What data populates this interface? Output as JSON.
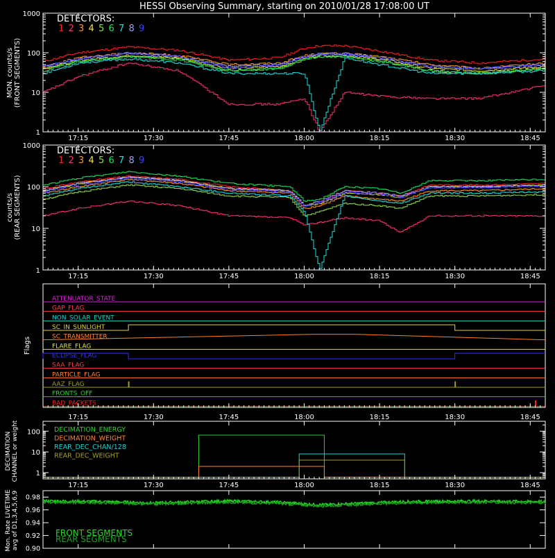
{
  "title": "HESSI Observing Summary, starting on 2010/01/28 17:08:00 UT",
  "colors": {
    "background": "#000000",
    "axis": "#ffffff",
    "detectors": [
      "#ff2020",
      "#ff3070",
      "#ff9820",
      "#f0e040",
      "#90e040",
      "#20e060",
      "#20e0e0",
      "#a0a0ff",
      "#4040ff"
    ]
  },
  "time_axis": {
    "ticks": [
      "17:15",
      "17:30",
      "17:45",
      "18:00",
      "18:15",
      "18:30",
      "18:45"
    ],
    "start": "17:08",
    "end": "18:48"
  },
  "panels": {
    "front": {
      "ylabel_1": "MON. counts/s",
      "ylabel_2": "(FRONT SEGMENTS)",
      "legend_title": "DETECTORS:",
      "y_ticks": [
        "1",
        "10",
        "100",
        "1000"
      ]
    },
    "rear": {
      "ylabel_1": "counts/s",
      "ylabel_2": "(REAR SEGMENTS)",
      "legend_title": "DETECTORS:",
      "y_ticks": [
        "1",
        "10",
        "100",
        "1000"
      ]
    },
    "flags": {
      "ylabel": "Flags",
      "items": [
        {
          "label": "ATTENUATOR_STATE",
          "color": "#e020e0"
        },
        {
          "label": "GAP_FLAG",
          "color": "#ff4040"
        },
        {
          "label": "NON_SOLAR_EVENT",
          "color": "#20d0d0"
        },
        {
          "label": "SC_IN_SUNLIGHT",
          "color": "#e0d040"
        },
        {
          "label": "SC_TRANSMITTER",
          "color": "#ff8030"
        },
        {
          "label": "FLARE_FLAG",
          "color": "#e0e040"
        },
        {
          "label": "ECLIPSE_FLAG",
          "color": "#3030ff"
        },
        {
          "label": "SAA_FLAG",
          "color": "#ff4040"
        },
        {
          "label": "PARTICLE_FLAG",
          "color": "#ff8030"
        },
        {
          "label": "AAZ_FLAG",
          "color": "#a0a020"
        },
        {
          "label": "FRONTS_OFF",
          "color": "#30d030"
        },
        {
          "label": "BAD_PACKETS",
          "color": "#ff2020"
        }
      ]
    },
    "decimation": {
      "ylabel_1": "DECIMATION",
      "ylabel_2": "CHANNEL or weight",
      "y_ticks": [
        "1",
        "10",
        "100"
      ],
      "legend": [
        {
          "label": "DECIMATION_ENERGY",
          "color": "#30d030"
        },
        {
          "label": "DECIMATION_WEIGHT",
          "color": "#ff8030"
        },
        {
          "label": "REAR_DEC_CHAN/128",
          "color": "#20d0d0"
        },
        {
          "label": "REAR_DEC_WEIGHT",
          "color": "#a0a020"
        }
      ]
    },
    "livetime": {
      "ylabel_1": "Mon. Rate LIVETIME",
      "ylabel_2": "avg of D1,3,4,5,6,9",
      "y_ticks": [
        "0.90",
        "0.92",
        "0.94",
        "0.96",
        "0.98"
      ],
      "legend": [
        {
          "label": "FRONT SEGMENTS",
          "color": "#20e020"
        },
        {
          "label": "REAR SEGMENTS",
          "color": "#20a020"
        }
      ]
    }
  },
  "chart_data": [
    {
      "type": "line",
      "title": "HESSI Observing Summary, starting on 2010/01/28 17:08:00 UT",
      "ylabel": "MON. counts/s (FRONT SEGMENTS)",
      "y_scale": "log",
      "ylim": [
        1,
        1000
      ],
      "x_range": [
        "17:08",
        "18:48"
      ],
      "x": [
        "17:08",
        "17:15",
        "17:25",
        "17:35",
        "17:45",
        "17:55",
        "18:00",
        "18:03",
        "18:08",
        "18:15",
        "18:25",
        "18:35",
        "18:48"
      ],
      "series": [
        {
          "name": "1",
          "values": [
            60,
            100,
            140,
            115,
            65,
            75,
            130,
            150,
            150,
            110,
            65,
            55,
            70
          ]
        },
        {
          "name": "2",
          "values": [
            10,
            25,
            55,
            35,
            5,
            5,
            7,
            1,
            10,
            8,
            7,
            7,
            15
          ]
        },
        {
          "name": "3",
          "values": [
            45,
            75,
            100,
            85,
            50,
            55,
            85,
            95,
            95,
            80,
            50,
            40,
            55
          ]
        },
        {
          "name": "4",
          "values": [
            40,
            65,
            85,
            75,
            40,
            45,
            75,
            85,
            85,
            70,
            40,
            35,
            45
          ]
        },
        {
          "name": "5",
          "values": [
            40,
            60,
            80,
            70,
            35,
            40,
            70,
            85,
            85,
            65,
            35,
            30,
            40
          ]
        },
        {
          "name": "6",
          "values": [
            35,
            60,
            80,
            65,
            35,
            40,
            70,
            80,
            80,
            60,
            35,
            30,
            40
          ]
        },
        {
          "name": "7",
          "values": [
            30,
            55,
            70,
            55,
            30,
            30,
            30,
            1,
            75,
            50,
            30,
            30,
            35
          ]
        },
        {
          "name": "8",
          "values": [
            45,
            70,
            100,
            80,
            45,
            50,
            80,
            95,
            95,
            75,
            45,
            40,
            50
          ]
        },
        {
          "name": "9",
          "values": [
            45,
            70,
            95,
            80,
            40,
            50,
            80,
            90,
            90,
            75,
            45,
            40,
            50
          ]
        }
      ]
    },
    {
      "type": "line",
      "ylabel": "counts/s (REAR SEGMENTS)",
      "y_scale": "log",
      "ylim": [
        1,
        1000
      ],
      "x_range": [
        "17:08",
        "18:48"
      ],
      "x": [
        "17:08",
        "17:15",
        "17:25",
        "17:35",
        "17:45",
        "17:57",
        "18:00",
        "18:03",
        "18:08",
        "18:15",
        "18:19",
        "18:25",
        "18:35",
        "18:48"
      ],
      "series": [
        {
          "name": "1",
          "values": [
            90,
            130,
            180,
            150,
            100,
            80,
            35,
            40,
            80,
            70,
            60,
            110,
            110,
            120
          ]
        },
        {
          "name": "2",
          "values": [
            20,
            30,
            45,
            35,
            20,
            18,
            12,
            14,
            18,
            15,
            8,
            20,
            20,
            20
          ]
        },
        {
          "name": "3",
          "values": [
            70,
            100,
            150,
            120,
            80,
            70,
            30,
            35,
            60,
            50,
            45,
            80,
            80,
            90
          ]
        },
        {
          "name": "4",
          "values": [
            80,
            120,
            170,
            140,
            90,
            80,
            35,
            40,
            70,
            65,
            55,
            100,
            100,
            110
          ]
        },
        {
          "name": "5",
          "values": [
            50,
            75,
            110,
            90,
            60,
            55,
            20,
            25,
            40,
            35,
            30,
            60,
            60,
            65
          ]
        },
        {
          "name": "6",
          "values": [
            110,
            160,
            230,
            180,
            120,
            100,
            45,
            50,
            100,
            90,
            70,
            140,
            140,
            150
          ]
        },
        {
          "name": "7",
          "values": [
            60,
            90,
            130,
            100,
            70,
            60,
            25,
            1,
            60,
            45,
            40,
            70,
            70,
            75
          ]
        },
        {
          "name": "8",
          "values": [
            80,
            120,
            170,
            140,
            90,
            80,
            35,
            45,
            80,
            70,
            60,
            100,
            100,
            110
          ]
        },
        {
          "name": "9",
          "values": [
            75,
            110,
            160,
            130,
            85,
            75,
            33,
            42,
            75,
            65,
            55,
            95,
            95,
            105
          ]
        }
      ]
    },
    {
      "type": "line",
      "ylabel": "Flags",
      "x_range": [
        "17:08",
        "18:48"
      ],
      "series": [
        {
          "name": "SC_IN_SUNLIGHT",
          "segments": [
            {
              "from": "17:08",
              "to": "17:25",
              "state": 0
            },
            {
              "from": "17:25",
              "to": "18:30",
              "state": 1
            },
            {
              "from": "18:30",
              "to": "18:48",
              "state": 0
            }
          ]
        },
        {
          "name": "SC_TRANSMITTER",
          "segments": [
            {
              "from": "18:02",
              "to": "18:10",
              "state": 1
            }
          ]
        },
        {
          "name": "ECLIPSE_FLAG",
          "segments": [
            {
              "from": "17:08",
              "to": "17:25",
              "state": 1
            },
            {
              "from": "17:25",
              "to": "18:30",
              "state": 0
            },
            {
              "from": "18:30",
              "to": "18:48",
              "state": 1
            }
          ]
        },
        {
          "name": "AAZ_FLAG",
          "segments": [
            {
              "from": "17:25",
              "to": "17:25",
              "state": 1
            },
            {
              "from": "18:30",
              "to": "18:30",
              "state": 1
            }
          ]
        },
        {
          "name": "BAD_PACKETS",
          "segments": [
            {
              "from": "18:46",
              "to": "18:46",
              "state": 1
            }
          ]
        }
      ]
    },
    {
      "type": "line",
      "ylabel": "DECIMATION CHANNEL or weight",
      "y_scale": "log",
      "ylim": [
        0.5,
        300
      ],
      "x_range": [
        "17:08",
        "18:48"
      ],
      "series": [
        {
          "name": "DECIMATION_ENERGY",
          "segments": [
            {
              "from": "17:08",
              "to": "17:39",
              "value": 0.6
            },
            {
              "from": "17:39",
              "to": "18:04",
              "value": 64
            },
            {
              "from": "18:04",
              "to": "18:48",
              "value": 0.6
            }
          ]
        },
        {
          "name": "DECIMATION_WEIGHT",
          "segments": [
            {
              "from": "17:08",
              "to": "17:39",
              "value": 0.6
            },
            {
              "from": "17:39",
              "to": "18:04",
              "value": 2
            },
            {
              "from": "18:04",
              "to": "18:48",
              "value": 0.6
            }
          ]
        },
        {
          "name": "REAR_DEC_CHAN/128",
          "segments": [
            {
              "from": "17:08",
              "to": "17:59",
              "value": 0.6
            },
            {
              "from": "17:59",
              "to": "18:20",
              "value": 8
            },
            {
              "from": "18:20",
              "to": "18:48",
              "value": 0.6
            }
          ]
        },
        {
          "name": "REAR_DEC_WEIGHT",
          "segments": [
            {
              "from": "17:08",
              "to": "17:59",
              "value": 0.6
            },
            {
              "from": "17:59",
              "to": "18:20",
              "value": 4
            },
            {
              "from": "18:20",
              "to": "18:48",
              "value": 0.6
            }
          ]
        }
      ]
    },
    {
      "type": "line",
      "ylabel": "Mon. Rate LIVETIME avg of D1,3,4,5,6,9",
      "ylim": [
        0.9,
        0.99
      ],
      "x_range": [
        "17:08",
        "18:48"
      ],
      "x": [
        "17:08",
        "17:20",
        "17:30",
        "17:45",
        "17:55",
        "18:03",
        "18:10",
        "18:20",
        "18:35",
        "18:48"
      ],
      "series": [
        {
          "name": "FRONT SEGMENTS",
          "values": [
            0.974,
            0.973,
            0.971,
            0.974,
            0.972,
            0.968,
            0.97,
            0.973,
            0.974,
            0.973
          ]
        },
        {
          "name": "REAR SEGMENTS",
          "values": [
            0.972,
            0.971,
            0.969,
            0.972,
            0.97,
            0.966,
            0.968,
            0.971,
            0.972,
            0.971
          ]
        }
      ]
    }
  ]
}
